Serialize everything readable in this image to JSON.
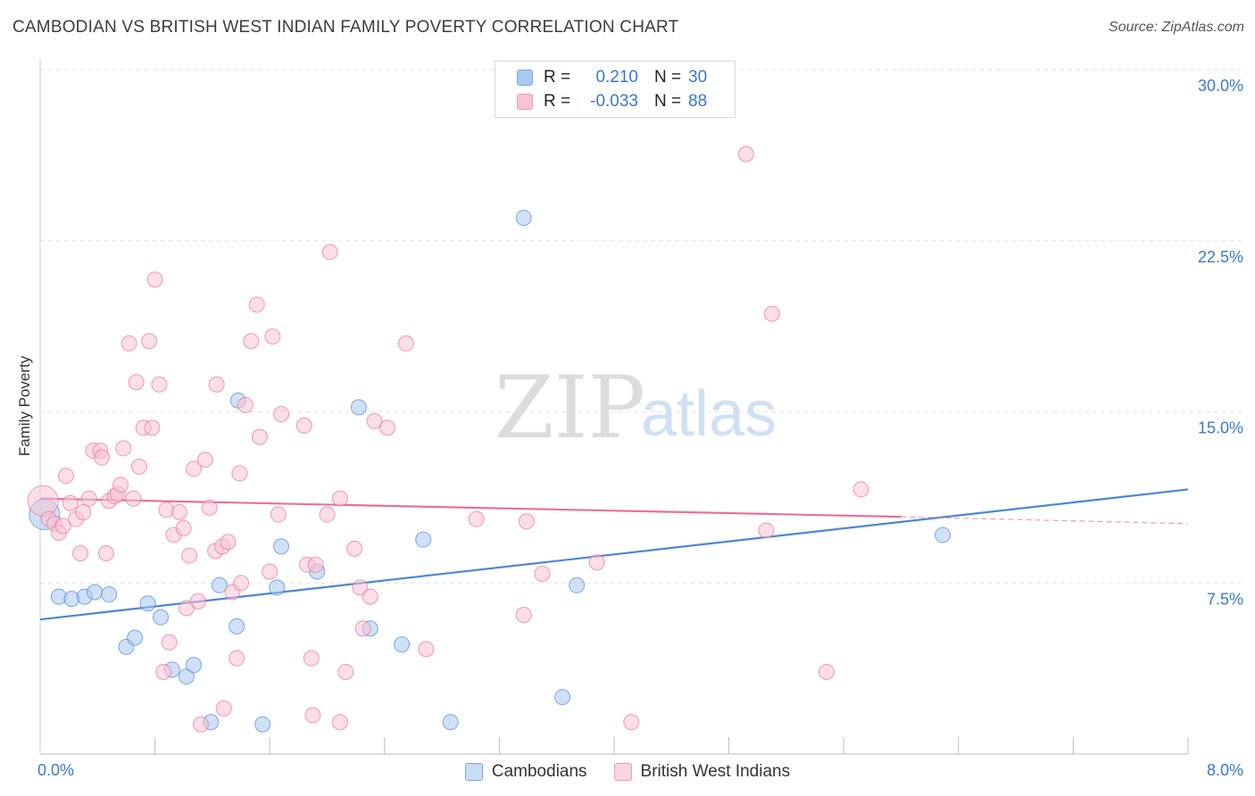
{
  "header": {
    "title": "CAMBODIAN VS BRITISH WEST INDIAN FAMILY POVERTY CORRELATION CHART",
    "source": "Source: ZipAtlas.com"
  },
  "watermark": {
    "zip": "ZIP",
    "atlas": "atlas"
  },
  "legend": {
    "rows": [
      {
        "r_label": "R =",
        "r_value": "0.210",
        "n_label": "N =",
        "n_value": "30",
        "color": "#a9c8f0",
        "border": "#7aa7df"
      },
      {
        "r_label": "R =",
        "r_value": "-0.033",
        "n_label": "N =",
        "n_value": "88",
        "color": "#f8c3d4",
        "border": "#ee9ab5"
      }
    ]
  },
  "bottom_legend": {
    "items": [
      {
        "label": "Cambodians",
        "color": "#c9dcf5",
        "border": "#7aa7df"
      },
      {
        "label": "British West Indians",
        "color": "#fbd6e1",
        "border": "#ee9ab5"
      }
    ]
  },
  "chart_data": {
    "type": "scatter",
    "title": "CAMBODIAN VS BRITISH WEST INDIAN FAMILY POVERTY CORRELATION CHART",
    "xlabel": "",
    "ylabel": "Family Poverty",
    "xlim": [
      0,
      8
    ],
    "ylim": [
      0,
      30
    ],
    "x_tick_labels": [
      "0.0%",
      "8.0%"
    ],
    "y_ticks": [
      7.5,
      15.0,
      22.5,
      30.0
    ],
    "y_tick_labels": [
      "7.5%",
      "15.0%",
      "22.5%",
      "30.0%"
    ],
    "grid": true,
    "legend_position": "top-center",
    "series": [
      {
        "name": "Cambodians",
        "color": "#4a86d6",
        "fill": "#a9c8f0",
        "trend": {
          "x": [
            0.0,
            8.0
          ],
          "y": [
            5.9,
            11.6
          ],
          "style": "solid"
        },
        "points": [
          [
            0.03,
            10.5,
            3
          ],
          [
            0.13,
            6.9,
            1
          ],
          [
            0.22,
            6.8,
            1
          ],
          [
            0.31,
            6.9,
            1
          ],
          [
            0.38,
            7.1,
            1
          ],
          [
            0.48,
            7.0,
            1
          ],
          [
            0.6,
            4.7,
            1
          ],
          [
            0.66,
            5.1,
            1
          ],
          [
            0.75,
            6.6,
            1
          ],
          [
            0.84,
            6.0,
            1
          ],
          [
            0.92,
            3.7,
            1
          ],
          [
            1.02,
            3.4,
            1
          ],
          [
            1.07,
            3.9,
            1
          ],
          [
            1.19,
            1.4,
            1
          ],
          [
            1.25,
            7.4,
            1
          ],
          [
            1.37,
            5.6,
            1
          ],
          [
            1.38,
            15.5,
            1
          ],
          [
            1.55,
            1.3,
            1
          ],
          [
            1.65,
            7.3,
            1
          ],
          [
            1.68,
            9.1,
            1
          ],
          [
            1.93,
            8.0,
            1
          ],
          [
            2.22,
            15.2,
            1
          ],
          [
            2.3,
            5.5,
            1
          ],
          [
            2.52,
            4.8,
            1
          ],
          [
            2.67,
            9.4,
            1
          ],
          [
            2.86,
            1.4,
            1
          ],
          [
            3.37,
            23.5,
            1
          ],
          [
            3.64,
            2.5,
            1
          ],
          [
            3.74,
            7.4,
            1
          ],
          [
            6.29,
            9.6,
            1
          ]
        ]
      },
      {
        "name": "British West Indians",
        "color": "#e8709a",
        "fill": "#f8c3d4",
        "trend": {
          "x": [
            0.0,
            6.0
          ],
          "y": [
            11.2,
            10.4
          ],
          "style": "solid",
          "dashed_extension_to": [
            8.0,
            10.1
          ]
        },
        "points": [
          [
            0.02,
            11.1,
            3
          ],
          [
            0.06,
            10.3,
            1
          ],
          [
            0.1,
            10.1,
            1
          ],
          [
            0.13,
            9.7,
            1
          ],
          [
            0.16,
            10.0,
            1
          ],
          [
            0.18,
            12.2,
            1
          ],
          [
            0.21,
            11.0,
            1
          ],
          [
            0.25,
            10.3,
            1
          ],
          [
            0.28,
            8.8,
            1
          ],
          [
            0.3,
            10.6,
            1
          ],
          [
            0.34,
            11.2,
            1
          ],
          [
            0.37,
            13.3,
            1
          ],
          [
            0.42,
            13.3,
            1
          ],
          [
            0.43,
            13.0,
            1
          ],
          [
            0.46,
            8.8,
            1
          ],
          [
            0.48,
            11.1,
            1
          ],
          [
            0.52,
            11.3,
            1
          ],
          [
            0.54,
            11.4,
            1
          ],
          [
            0.56,
            11.8,
            1
          ],
          [
            0.58,
            13.4,
            1
          ],
          [
            0.62,
            18.0,
            1
          ],
          [
            0.65,
            11.2,
            1
          ],
          [
            0.67,
            16.3,
            1
          ],
          [
            0.69,
            12.6,
            1
          ],
          [
            0.72,
            14.3,
            1
          ],
          [
            0.76,
            18.1,
            1
          ],
          [
            0.78,
            14.3,
            1
          ],
          [
            0.8,
            20.8,
            1
          ],
          [
            0.83,
            16.2,
            1
          ],
          [
            0.86,
            3.6,
            1
          ],
          [
            0.88,
            10.7,
            1
          ],
          [
            0.9,
            4.9,
            1
          ],
          [
            0.93,
            9.6,
            1
          ],
          [
            0.97,
            10.6,
            1
          ],
          [
            1.0,
            9.9,
            1
          ],
          [
            1.02,
            6.4,
            1
          ],
          [
            1.04,
            8.7,
            1
          ],
          [
            1.07,
            12.5,
            1
          ],
          [
            1.1,
            6.7,
            1
          ],
          [
            1.12,
            1.3,
            1
          ],
          [
            1.15,
            12.9,
            1
          ],
          [
            1.18,
            10.8,
            1
          ],
          [
            1.22,
            8.9,
            1
          ],
          [
            1.23,
            16.2,
            1
          ],
          [
            1.27,
            9.1,
            1
          ],
          [
            1.28,
            2.0,
            1
          ],
          [
            1.31,
            9.3,
            1
          ],
          [
            1.34,
            7.1,
            1
          ],
          [
            1.37,
            4.2,
            1
          ],
          [
            1.39,
            12.3,
            1
          ],
          [
            1.4,
            7.5,
            1
          ],
          [
            1.43,
            15.3,
            1
          ],
          [
            1.47,
            18.1,
            1
          ],
          [
            1.51,
            19.7,
            1
          ],
          [
            1.53,
            13.9,
            1
          ],
          [
            1.6,
            8.0,
            1
          ],
          [
            1.62,
            18.3,
            1
          ],
          [
            1.66,
            10.5,
            1
          ],
          [
            1.68,
            14.9,
            1
          ],
          [
            1.84,
            14.4,
            1
          ],
          [
            1.86,
            8.3,
            1
          ],
          [
            1.89,
            4.2,
            1
          ],
          [
            1.92,
            8.3,
            1
          ],
          [
            2.0,
            10.5,
            1
          ],
          [
            2.02,
            22.0,
            1
          ],
          [
            2.09,
            11.2,
            1
          ],
          [
            2.13,
            3.6,
            1
          ],
          [
            2.19,
            9.0,
            1
          ],
          [
            2.23,
            7.3,
            1
          ],
          [
            2.25,
            5.5,
            1
          ],
          [
            2.3,
            6.9,
            1
          ],
          [
            2.33,
            14.6,
            1
          ],
          [
            2.42,
            14.3,
            1
          ],
          [
            2.55,
            18.0,
            1
          ],
          [
            2.69,
            4.6,
            1
          ],
          [
            3.04,
            10.3,
            1
          ],
          [
            3.37,
            6.1,
            1
          ],
          [
            3.39,
            10.2,
            1
          ],
          [
            3.5,
            7.9,
            1
          ],
          [
            3.88,
            8.4,
            1
          ],
          [
            4.12,
            1.4,
            1
          ],
          [
            4.92,
            26.3,
            1
          ],
          [
            5.06,
            9.8,
            1
          ],
          [
            5.1,
            19.3,
            1
          ],
          [
            5.48,
            3.6,
            1
          ],
          [
            5.72,
            11.6,
            1
          ],
          [
            1.9,
            1.7,
            1
          ],
          [
            2.09,
            1.4,
            1
          ]
        ]
      }
    ]
  }
}
